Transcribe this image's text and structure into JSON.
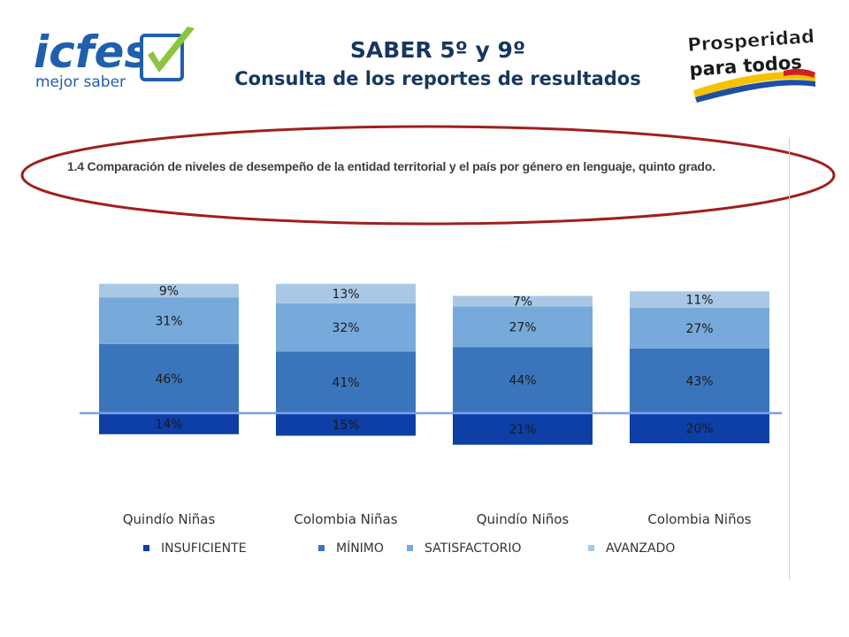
{
  "header": {
    "title": "SABER 5º y 9º",
    "subtitle": "Consulta de los reportes de resultados"
  },
  "logo_left": {
    "main": "icfes",
    "tagline": "mejor saber"
  },
  "logo_right": {
    "line1": "Prosperidad",
    "line2": "para todos"
  },
  "caption": "1.4 Comparación de niveles de desempeño de la entidad territorial y el país por género en lenguaje, quinto grado.",
  "colors": {
    "insuficiente": "#0d3fa6",
    "minimo": "#3a75bb",
    "satisfactorio": "#77a9da",
    "avanzado": "#a9c8e6",
    "reference_line": "#7f9ef0",
    "ellipse": "#a01f1f",
    "title": "#17375e"
  },
  "chart_data": {
    "type": "bar",
    "stacked": true,
    "baseline": "between INSUFICIENTE and MÍNIMO",
    "categories": [
      "Quindío Niñas",
      "Colombia Niñas",
      "Quindío Niños",
      "Colombia Niños"
    ],
    "series": [
      {
        "name": "INSUFICIENTE",
        "values": [
          14,
          15,
          21,
          20
        ],
        "labels": [
          "14%",
          "15%",
          "21%",
          "20%"
        ]
      },
      {
        "name": "MÍNIMO",
        "values": [
          46,
          41,
          44,
          43
        ],
        "labels": [
          "46%",
          "41%",
          "44%",
          "43%"
        ]
      },
      {
        "name": "SATISFACTORIO",
        "values": [
          31,
          32,
          27,
          27
        ],
        "labels": [
          "31%",
          "32%",
          "27%",
          "27%"
        ]
      },
      {
        "name": "AVANZADO",
        "values": [
          9,
          13,
          7,
          11
        ],
        "labels": [
          "9%",
          "13%",
          "7%",
          "11%"
        ]
      }
    ],
    "legend_position": "bottom"
  }
}
